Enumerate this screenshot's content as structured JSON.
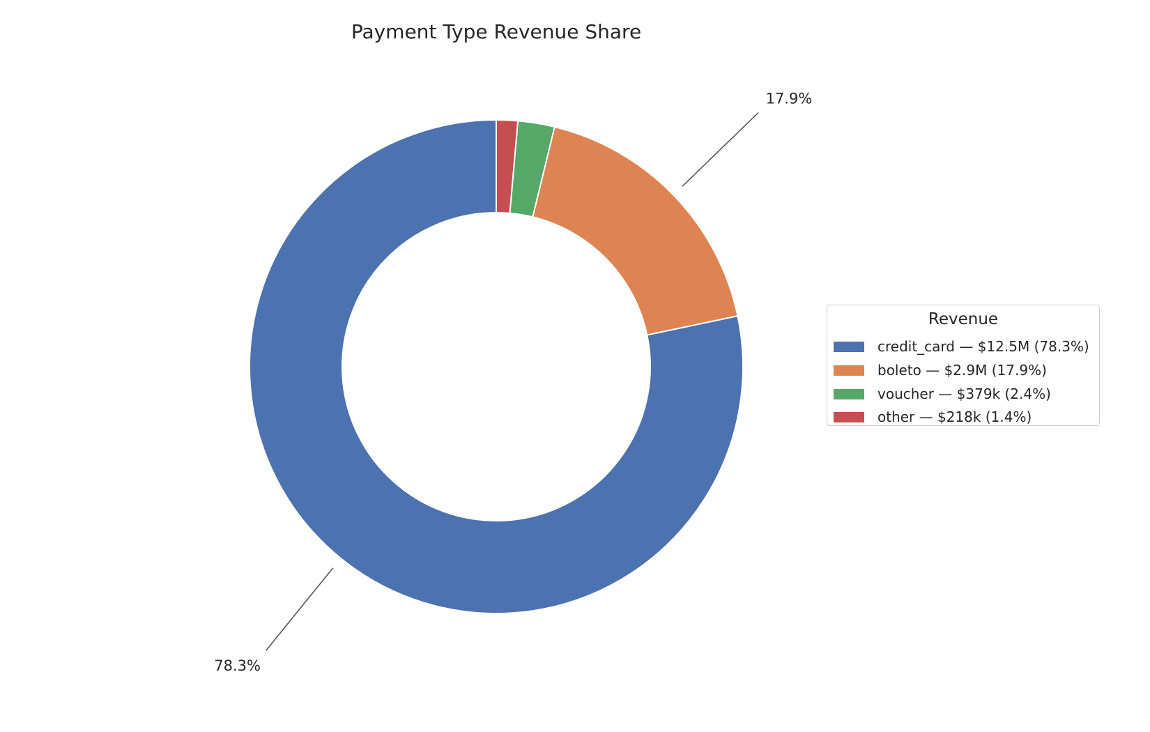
{
  "chart_data": {
    "type": "pie",
    "donut": true,
    "title": "Payment Type Revenue Share",
    "legend_title": "Revenue",
    "legend_position": "center-right",
    "start_angle_deg": 90,
    "direction": "counterclockwise",
    "slices": [
      {
        "name": "credit_card",
        "value": 78.3,
        "legend_label": "credit_card — $12.5M (78.3%)",
        "pct_label": "78.3%",
        "color": "#4c72b0"
      },
      {
        "name": "boleto",
        "value": 17.9,
        "legend_label": "boleto — $2.9M (17.9%)",
        "pct_label": "17.9%",
        "color": "#dd8452"
      },
      {
        "name": "voucher",
        "value": 2.4,
        "legend_label": "voucher — $379k (2.4%)",
        "pct_label": "",
        "color": "#55a868"
      },
      {
        "name": "other",
        "value": 1.4,
        "legend_label": "other — $218k (1.4%)",
        "pct_label": "",
        "color": "#c44e52"
      }
    ]
  }
}
